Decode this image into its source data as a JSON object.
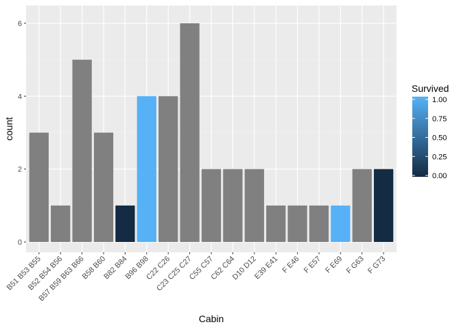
{
  "chart_data": {
    "type": "bar",
    "title": "",
    "xlabel": "Cabin",
    "ylabel": "count",
    "ylim": [
      0,
      6.3
    ],
    "y_ticks": [
      "0",
      "2",
      "4",
      "6"
    ],
    "categories": [
      "B51 B53 B55",
      "B52 B54 B56",
      "B57 B59 B63 B66",
      "B58 B60",
      "B82 B84",
      "B96 B98",
      "C22 C26",
      "C23 C25 C27",
      "C55 C57",
      "C62 C64",
      "D10 D12",
      "E39 E41",
      "F E46",
      "F E57",
      "F E69",
      "F G63",
      "F G73"
    ],
    "values": [
      3,
      1,
      5,
      3,
      1,
      4,
      4,
      6,
      2,
      2,
      2,
      1,
      1,
      1,
      1,
      2,
      2
    ],
    "survived": [
      null,
      null,
      null,
      null,
      0,
      1,
      null,
      null,
      null,
      null,
      null,
      null,
      null,
      null,
      1,
      null,
      0
    ],
    "na_color": "#808080",
    "panel_background": "#ebebeb",
    "grid": true,
    "legend": {
      "title": "Survived",
      "placement": "right",
      "labels": [
        "1.00",
        "0.75",
        "0.50",
        "0.25",
        "0.00"
      ],
      "low_color": "#132b43",
      "high_color": "#56b1f7"
    }
  }
}
